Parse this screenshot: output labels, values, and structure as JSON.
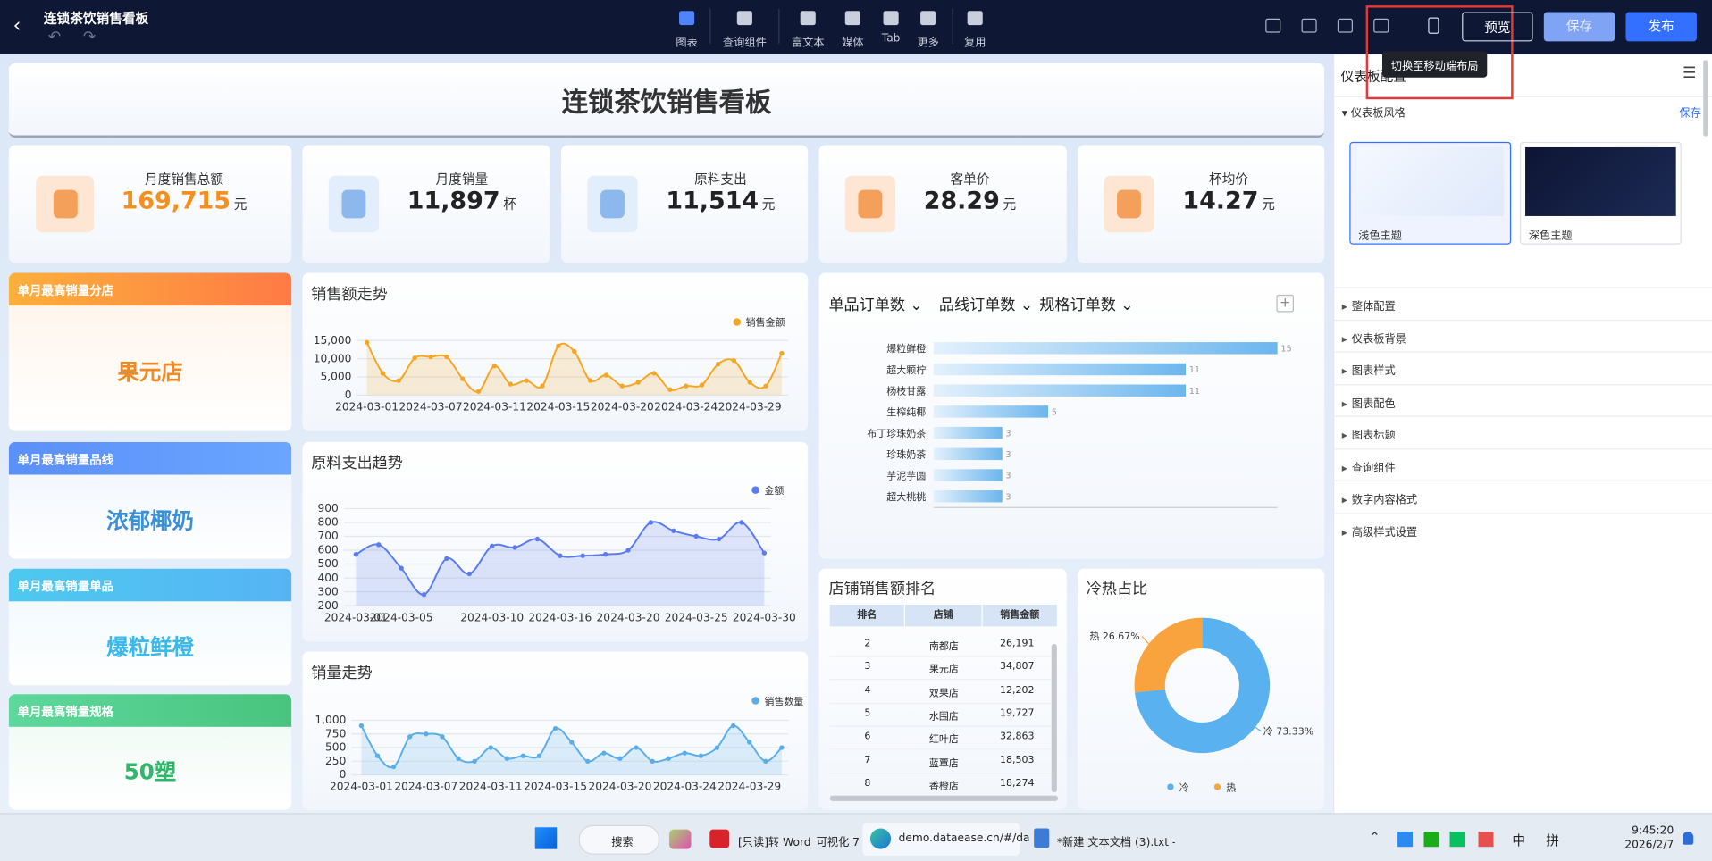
{
  "header": {
    "title": "连锁茶饮销售看板",
    "tools": [
      "图表",
      "查询组件",
      "富文本",
      "媒体",
      "Tab",
      "更多",
      "复用"
    ],
    "buttons": [
      "预览",
      "保存",
      "发布"
    ],
    "tooltip": "切换至移动端布局"
  },
  "dashboard": {
    "title": "连锁茶饮销售看板",
    "kpis": [
      {
        "label": "月度销售总额",
        "value": "169,715",
        "unit": "元"
      },
      {
        "label": "月度销量",
        "value": "11,897",
        "unit": "杯"
      },
      {
        "label": "原料支出",
        "value": "11,514",
        "unit": "元"
      },
      {
        "label": "客单价",
        "value": "28.29",
        "unit": "元"
      },
      {
        "label": "杯均价",
        "value": "14.27",
        "unit": "元"
      }
    ],
    "highlights": [
      {
        "title": "单月最高销量分店",
        "value": "果元店"
      },
      {
        "title": "单月最高销量品线",
        "value": "浓郁椰奶"
      },
      {
        "title": "单月最高销量单品",
        "value": "爆粒鲜橙"
      },
      {
        "title": "单月最高销量规格",
        "value": "50塑"
      }
    ],
    "tabs": [
      "单品订单数",
      "品线订单数",
      "规格订单数"
    ],
    "table": {
      "title": "店铺销售额排名",
      "columns": [
        "排名",
        "店铺",
        "销售金额"
      ],
      "rows": [
        [
          "2",
          "南都店",
          "26,191"
        ],
        [
          "3",
          "果元店",
          "34,807"
        ],
        [
          "4",
          "双果店",
          "12,202"
        ],
        [
          "5",
          "水围店",
          "19,727"
        ],
        [
          "6",
          "红叶店",
          "32,863"
        ],
        [
          "7",
          "蓝覃店",
          "18,503"
        ],
        [
          "8",
          "香橙店",
          "18,274"
        ]
      ]
    }
  },
  "panel": {
    "title": "仪表板配置",
    "section": "仪表板风格",
    "save": "保存",
    "themes": [
      "浅色主题",
      "深色主题"
    ],
    "items": [
      "整体配置",
      "仪表板背景",
      "图表样式",
      "图表配色",
      "图表标题",
      "查询组件",
      "数字内容格式",
      "高级样式设置"
    ]
  },
  "taskbar": {
    "search": "搜索",
    "apps": [
      "[只读]转 Word_可视化 7",
      "demo.dataease.cn/#/da",
      "*新建 文本文档 (3).txt - "
    ],
    "ime": [
      "中",
      "拼"
    ],
    "time": "9:45:20",
    "date": "2026/2/7"
  },
  "chart_data": [
    {
      "type": "line",
      "title": "销售额走势",
      "categories": [
        "2024-03-01",
        null,
        null,
        null,
        "2024-03-07",
        null,
        null,
        null,
        "2024-03-11",
        null,
        null,
        null,
        "2024-03-15",
        null,
        null,
        null,
        "2024-03-20",
        null,
        null,
        null,
        "2024-03-24",
        null,
        null,
        null,
        "2024-03-29",
        null,
        null
      ],
      "series": [
        {
          "name": "销售金额",
          "color": "#f5a623",
          "values": [
            14500,
            6000,
            4000,
            10200,
            10500,
            10500,
            4500,
            1000,
            8000,
            3000,
            4000,
            2500,
            13500,
            12000,
            4000,
            5500,
            2500,
            3500,
            6000,
            1500,
            2500,
            2800,
            8500,
            9500,
            3500,
            2500,
            11500
          ]
        }
      ],
      "ylim": [
        0,
        15000
      ],
      "yticks": [
        0,
        {
          "value": 5000,
          "label": "5,000"
        },
        {
          "value": 10000,
          "label": "10,000"
        },
        {
          "value": 15000,
          "label": "15,000"
        }
      ],
      "grid": true,
      "legend": "top-right"
    },
    {
      "type": "line",
      "title": "原料支出趋势",
      "categories": [
        "2024-03-01",
        null,
        "2024-03-05",
        null,
        null,
        null,
        "2024-03-10",
        null,
        null,
        "2024-03-16",
        null,
        null,
        "2024-03-20",
        null,
        null,
        "2024-03-25",
        null,
        null,
        "2024-03-30"
      ],
      "series": [
        {
          "name": "金额",
          "color": "#5b7bf0",
          "values": [
            570,
            640,
            470,
            280,
            540,
            430,
            630,
            620,
            680,
            560,
            560,
            570,
            600,
            800,
            740,
            700,
            680,
            800,
            580
          ]
        }
      ],
      "ylim": [
        200,
        900
      ],
      "yticks": [
        200,
        300,
        400,
        500,
        600,
        700,
        800,
        900
      ],
      "grid": true,
      "legend": "top-right"
    },
    {
      "type": "line",
      "title": "销量走势",
      "categories": [
        "2024-03-01",
        null,
        null,
        null,
        "2024-03-07",
        null,
        null,
        null,
        "2024-03-11",
        null,
        null,
        null,
        "2024-03-15",
        null,
        null,
        null,
        "2024-03-20",
        null,
        null,
        null,
        "2024-03-24",
        null,
        null,
        null,
        "2024-03-29",
        null,
        null
      ],
      "series": [
        {
          "name": "销售数量",
          "color": "#5aaee8",
          "values": [
            900,
            350,
            150,
            700,
            750,
            700,
            300,
            250,
            500,
            300,
            350,
            350,
            850,
            600,
            250,
            400,
            300,
            500,
            250,
            300,
            400,
            350,
            500,
            900,
            600,
            250,
            500
          ]
        }
      ],
      "ylim": [
        0,
        1000
      ],
      "yticks": [
        0,
        250,
        500,
        750,
        {
          "value": 1000,
          "label": "1,000"
        }
      ],
      "grid": true,
      "legend": "top-right"
    },
    {
      "type": "hbar",
      "categories": [
        "爆粒鲜橙",
        "超大颗柠",
        "杨枝甘露",
        "生榨纯椰",
        "布丁珍珠奶茶",
        "珍珠奶茶",
        "芋泥芋圆",
        "超大桃桃"
      ],
      "values": [
        15,
        11,
        11,
        5,
        3,
        3,
        3,
        3
      ],
      "color": "#6cb6ee",
      "xlim": [
        0,
        15
      ]
    },
    {
      "type": "pie",
      "title": "冷热占比",
      "categories": [
        "冷",
        "热"
      ],
      "values": [
        73.33,
        26.67
      ],
      "value_labels": [
        "冷 73.33%",
        "热 26.67%"
      ],
      "colors": [
        "#5ab1ef",
        "#f9a33e"
      ]
    }
  ]
}
